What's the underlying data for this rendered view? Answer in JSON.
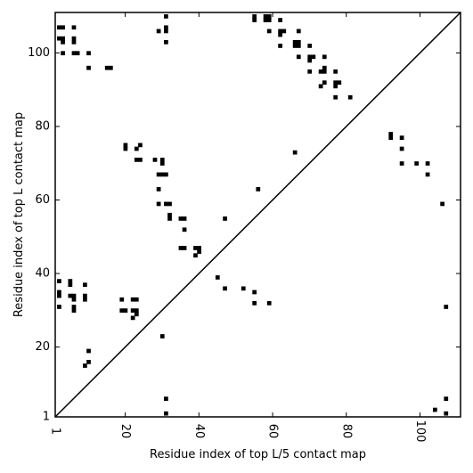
{
  "chart_data": {
    "type": "scatter",
    "marker": "square",
    "title": "",
    "xlabel": "Residue index of top L/5 contact map",
    "ylabel": "Residue index of top L contact map",
    "xlim": [
      1,
      111
    ],
    "ylim": [
      1,
      111
    ],
    "xticks": [
      1,
      20,
      40,
      60,
      80,
      100
    ],
    "yticks": [
      1,
      20,
      40,
      60,
      80,
      100
    ],
    "diagonal_line": true,
    "grid": false,
    "color": "#000000",
    "points": [
      [
        2,
        107
      ],
      [
        3,
        107
      ],
      [
        2,
        104
      ],
      [
        3,
        104
      ],
      [
        3,
        103
      ],
      [
        6,
        107
      ],
      [
        6,
        104
      ],
      [
        6,
        103
      ],
      [
        3,
        100
      ],
      [
        6,
        100
      ],
      [
        7,
        100
      ],
      [
        10,
        100
      ],
      [
        10,
        96
      ],
      [
        15,
        96
      ],
      [
        16,
        96
      ],
      [
        31,
        110
      ],
      [
        31,
        107
      ],
      [
        31,
        106
      ],
      [
        29,
        106
      ],
      [
        31,
        103
      ],
      [
        55,
        110
      ],
      [
        55,
        109
      ],
      [
        58,
        110
      ],
      [
        58,
        109
      ],
      [
        59,
        110
      ],
      [
        59,
        109
      ],
      [
        62,
        109
      ],
      [
        59,
        106
      ],
      [
        62,
        106
      ],
      [
        63,
        106
      ],
      [
        62,
        105
      ],
      [
        62,
        102
      ],
      [
        67,
        106
      ],
      [
        66,
        103
      ],
      [
        67,
        103
      ],
      [
        66,
        102
      ],
      [
        67,
        102
      ],
      [
        70,
        102
      ],
      [
        67,
        99
      ],
      [
        70,
        99
      ],
      [
        71,
        99
      ],
      [
        70,
        98
      ],
      [
        70,
        95
      ],
      [
        73,
        95
      ],
      [
        74,
        96
      ],
      [
        74,
        95
      ],
      [
        74,
        99
      ],
      [
        77,
        95
      ],
      [
        74,
        92
      ],
      [
        73,
        91
      ],
      [
        77,
        92
      ],
      [
        78,
        92
      ],
      [
        77,
        91
      ],
      [
        77,
        88
      ],
      [
        81,
        88
      ],
      [
        92,
        78
      ],
      [
        92,
        77
      ],
      [
        95,
        77
      ],
      [
        95,
        74
      ],
      [
        95,
        70
      ],
      [
        99,
        70
      ],
      [
        102,
        70
      ],
      [
        102,
        67
      ],
      [
        106,
        59
      ],
      [
        20,
        75
      ],
      [
        20,
        74
      ],
      [
        23,
        74
      ],
      [
        24,
        75
      ],
      [
        23,
        71
      ],
      [
        24,
        71
      ],
      [
        28,
        71
      ],
      [
        30,
        71
      ],
      [
        30,
        70
      ],
      [
        29,
        67
      ],
      [
        30,
        67
      ],
      [
        31,
        67
      ],
      [
        29,
        63
      ],
      [
        29,
        59
      ],
      [
        31,
        59
      ],
      [
        32,
        59
      ],
      [
        32,
        56
      ],
      [
        32,
        55
      ],
      [
        35,
        55
      ],
      [
        36,
        55
      ],
      [
        36,
        52
      ],
      [
        35,
        47
      ],
      [
        36,
        47
      ],
      [
        39,
        47
      ],
      [
        40,
        47
      ],
      [
        40,
        46
      ],
      [
        39,
        45
      ],
      [
        47,
        55
      ],
      [
        56,
        63
      ],
      [
        66,
        73
      ],
      [
        2,
        38
      ],
      [
        2,
        35
      ],
      [
        2,
        34
      ],
      [
        2,
        31
      ],
      [
        5,
        38
      ],
      [
        5,
        37
      ],
      [
        5,
        34
      ],
      [
        6,
        34
      ],
      [
        6,
        33
      ],
      [
        6,
        31
      ],
      [
        6,
        30
      ],
      [
        9,
        37
      ],
      [
        9,
        34
      ],
      [
        9,
        33
      ],
      [
        45,
        39
      ],
      [
        47,
        36
      ],
      [
        52,
        36
      ],
      [
        55,
        35
      ],
      [
        55,
        32
      ],
      [
        59,
        32
      ],
      [
        19,
        33
      ],
      [
        22,
        33
      ],
      [
        23,
        33
      ],
      [
        19,
        30
      ],
      [
        20,
        30
      ],
      [
        22,
        30
      ],
      [
        23,
        30
      ],
      [
        23,
        29
      ],
      [
        22,
        28
      ],
      [
        30,
        23
      ],
      [
        10,
        19
      ],
      [
        9,
        15
      ],
      [
        10,
        16
      ],
      [
        31,
        6
      ],
      [
        31,
        2
      ],
      [
        104,
        3
      ],
      [
        107,
        6
      ],
      [
        107,
        2
      ],
      [
        107,
        31
      ]
    ]
  }
}
